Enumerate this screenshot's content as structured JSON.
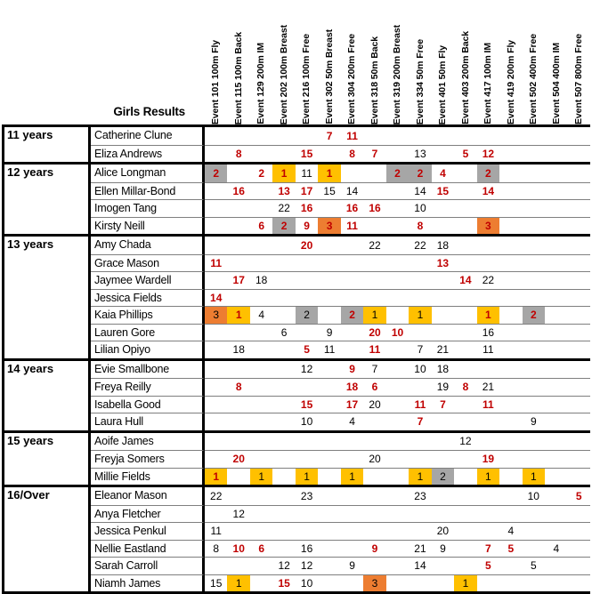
{
  "title": "Girls Results",
  "palette": {
    "red": "#C00000",
    "yellow": "#FFC000",
    "orange": "#ED7D31",
    "gray": "#A6A6A6"
  },
  "events": [
    "Event 101 100m Fly",
    "Event 115 100m Back",
    "Event 129 200m IM",
    "Event 202 100m Breast",
    "Event 216 100m Free",
    "Event 302 50m Breast",
    "Event 304 200m Free",
    "Event 318 50m Back",
    "Event 319 200m Breast",
    "Event 334 50m Free",
    "Event 401 50m Fly",
    "Event 403 200m Back",
    "Event 417 100m IM",
    "Event 419 200m Fly",
    "Event 502 400m Free",
    "Event 504 400m IM",
    "Event 507 800m Free"
  ],
  "groups": [
    {
      "label": "11 years",
      "swimmers": [
        {
          "name": "Catherine Clune",
          "results": [
            {
              "e": 5,
              "v": 7,
              "red": true
            },
            {
              "e": 6,
              "v": 11,
              "red": true
            }
          ]
        },
        {
          "name": "Eliza Andrews",
          "results": [
            {
              "e": 1,
              "v": 8,
              "red": true
            },
            {
              "e": 4,
              "v": 15,
              "red": true
            },
            {
              "e": 6,
              "v": 8,
              "red": true
            },
            {
              "e": 7,
              "v": 7,
              "red": true
            },
            {
              "e": 9,
              "v": 13
            },
            {
              "e": 11,
              "v": 5,
              "red": true
            },
            {
              "e": 12,
              "v": 12,
              "red": true
            }
          ]
        }
      ]
    },
    {
      "label": "12 years",
      "swimmers": [
        {
          "name": "Alice Longman",
          "results": [
            {
              "e": 0,
              "v": 2,
              "red": true,
              "bg": "gray"
            },
            {
              "e": 2,
              "v": 2,
              "red": true
            },
            {
              "e": 3,
              "v": 1,
              "red": true,
              "bg": "yellow"
            },
            {
              "e": 4,
              "v": 11
            },
            {
              "e": 5,
              "v": 1,
              "red": true,
              "bg": "yellow"
            },
            {
              "e": 8,
              "v": 2,
              "red": true,
              "bg": "gray"
            },
            {
              "e": 9,
              "v": 2,
              "red": true,
              "bg": "gray"
            },
            {
              "e": 10,
              "v": 4,
              "red": true
            },
            {
              "e": 12,
              "v": 2,
              "red": true,
              "bg": "gray"
            }
          ]
        },
        {
          "name": "Ellen Millar-Bond",
          "results": [
            {
              "e": 1,
              "v": 16,
              "red": true
            },
            {
              "e": 3,
              "v": 13,
              "red": true
            },
            {
              "e": 4,
              "v": 17,
              "red": true
            },
            {
              "e": 5,
              "v": 15
            },
            {
              "e": 6,
              "v": 14
            },
            {
              "e": 9,
              "v": 14
            },
            {
              "e": 10,
              "v": 15,
              "red": true
            },
            {
              "e": 12,
              "v": 14,
              "red": true
            }
          ]
        },
        {
          "name": "Imogen Tang",
          "results": [
            {
              "e": 3,
              "v": 22
            },
            {
              "e": 4,
              "v": 16,
              "red": true
            },
            {
              "e": 6,
              "v": 16,
              "red": true
            },
            {
              "e": 7,
              "v": 16,
              "red": true
            },
            {
              "e": 9,
              "v": 10
            }
          ]
        },
        {
          "name": "Kirsty Neill",
          "results": [
            {
              "e": 2,
              "v": 6,
              "red": true
            },
            {
              "e": 3,
              "v": 2,
              "red": true,
              "bg": "gray"
            },
            {
              "e": 4,
              "v": 9,
              "red": true
            },
            {
              "e": 5,
              "v": 3,
              "red": true,
              "bg": "orange"
            },
            {
              "e": 6,
              "v": 11,
              "red": true
            },
            {
              "e": 9,
              "v": 8,
              "red": true
            },
            {
              "e": 12,
              "v": 3,
              "red": true,
              "bg": "orange"
            }
          ]
        }
      ]
    },
    {
      "label": "13 years",
      "swimmers": [
        {
          "name": "Amy Chada",
          "results": [
            {
              "e": 4,
              "v": 20,
              "red": true
            },
            {
              "e": 7,
              "v": 22
            },
            {
              "e": 9,
              "v": 22
            },
            {
              "e": 10,
              "v": 18
            }
          ]
        },
        {
          "name": "Grace Mason",
          "results": [
            {
              "e": 0,
              "v": 11,
              "red": true
            },
            {
              "e": 10,
              "v": 13,
              "red": true
            }
          ]
        },
        {
          "name": "Jaymee Wardell",
          "results": [
            {
              "e": 1,
              "v": 17,
              "red": true
            },
            {
              "e": 2,
              "v": 18
            },
            {
              "e": 11,
              "v": 14,
              "red": true
            },
            {
              "e": 12,
              "v": 22
            }
          ]
        },
        {
          "name": "Jessica Fields",
          "results": [
            {
              "e": 0,
              "v": 14,
              "red": true
            }
          ]
        },
        {
          "name": "Kaia Phillips",
          "results": [
            {
              "e": 0,
              "v": 3,
              "bg": "orange"
            },
            {
              "e": 1,
              "v": 1,
              "red": true,
              "bg": "yellow"
            },
            {
              "e": 2,
              "v": 4
            },
            {
              "e": 4,
              "v": 2,
              "bg": "gray"
            },
            {
              "e": 6,
              "v": 2,
              "red": true,
              "bg": "gray"
            },
            {
              "e": 7,
              "v": 1,
              "bg": "yellow"
            },
            {
              "e": 9,
              "v": 1,
              "bg": "yellow"
            },
            {
              "e": 12,
              "v": 1,
              "red": true,
              "bg": "yellow"
            },
            {
              "e": 14,
              "v": 2,
              "red": true,
              "bg": "gray"
            }
          ]
        },
        {
          "name": "Lauren Gore",
          "results": [
            {
              "e": 3,
              "v": 6
            },
            {
              "e": 5,
              "v": 9
            },
            {
              "e": 7,
              "v": 20,
              "red": true
            },
            {
              "e": 8,
              "v": 10,
              "red": true
            },
            {
              "e": 12,
              "v": 16
            }
          ]
        },
        {
          "name": "Lilian Opiyo",
          "results": [
            {
              "e": 1,
              "v": 18
            },
            {
              "e": 4,
              "v": 5,
              "red": true
            },
            {
              "e": 5,
              "v": 11
            },
            {
              "e": 7,
              "v": 11,
              "red": true
            },
            {
              "e": 9,
              "v": 7
            },
            {
              "e": 10,
              "v": 21
            },
            {
              "e": 12,
              "v": 11
            }
          ]
        }
      ]
    },
    {
      "label": "14 years",
      "swimmers": [
        {
          "name": "Evie Smallbone",
          "results": [
            {
              "e": 4,
              "v": 12
            },
            {
              "e": 6,
              "v": 9,
              "red": true
            },
            {
              "e": 7,
              "v": 7
            },
            {
              "e": 9,
              "v": 10
            },
            {
              "e": 10,
              "v": 18
            }
          ]
        },
        {
          "name": "Freya Reilly",
          "results": [
            {
              "e": 1,
              "v": 8,
              "red": true
            },
            {
              "e": 6,
              "v": 18,
              "red": true
            },
            {
              "e": 7,
              "v": 6,
              "red": true
            },
            {
              "e": 10,
              "v": 19
            },
            {
              "e": 11,
              "v": 8,
              "red": true
            },
            {
              "e": 12,
              "v": 21
            }
          ]
        },
        {
          "name": "Isabella Good",
          "results": [
            {
              "e": 4,
              "v": 15,
              "red": true
            },
            {
              "e": 6,
              "v": 17,
              "red": true
            },
            {
              "e": 7,
              "v": 20
            },
            {
              "e": 9,
              "v": 11,
              "red": true
            },
            {
              "e": 10,
              "v": 7,
              "red": true
            },
            {
              "e": 12,
              "v": 11,
              "red": true
            }
          ]
        },
        {
          "name": "Laura Hull",
          "results": [
            {
              "e": 4,
              "v": 10
            },
            {
              "e": 6,
              "v": 4
            },
            {
              "e": 9,
              "v": 7,
              "red": true
            },
            {
              "e": 14,
              "v": 9
            }
          ]
        }
      ]
    },
    {
      "label": "15 years",
      "swimmers": [
        {
          "name": "Aoife James",
          "results": [
            {
              "e": 11,
              "v": 12
            }
          ]
        },
        {
          "name": "Freyja Somers",
          "results": [
            {
              "e": 1,
              "v": 20,
              "red": true
            },
            {
              "e": 7,
              "v": 20
            },
            {
              "e": 12,
              "v": 19,
              "red": true
            }
          ]
        },
        {
          "name": "Millie Fields",
          "results": [
            {
              "e": 0,
              "v": 1,
              "red": true,
              "bg": "yellow"
            },
            {
              "e": 2,
              "v": 1,
              "bg": "yellow"
            },
            {
              "e": 4,
              "v": 1,
              "bg": "yellow"
            },
            {
              "e": 6,
              "v": 1,
              "bg": "yellow"
            },
            {
              "e": 9,
              "v": 1,
              "bg": "yellow"
            },
            {
              "e": 10,
              "v": 2,
              "bg": "gray"
            },
            {
              "e": 12,
              "v": 1,
              "bg": "yellow"
            },
            {
              "e": 14,
              "v": 1,
              "bg": "yellow"
            }
          ]
        }
      ]
    },
    {
      "label": "16/Over",
      "swimmers": [
        {
          "name": "Eleanor Mason",
          "results": [
            {
              "e": 0,
              "v": 22
            },
            {
              "e": 4,
              "v": 23
            },
            {
              "e": 9,
              "v": 23
            },
            {
              "e": 14,
              "v": 10
            },
            {
              "e": 16,
              "v": 5,
              "red": true
            }
          ]
        },
        {
          "name": "Anya Fletcher",
          "results": [
            {
              "e": 1,
              "v": 12
            }
          ]
        },
        {
          "name": "Jessica Penkul",
          "results": [
            {
              "e": 0,
              "v": 11
            },
            {
              "e": 10,
              "v": 20
            },
            {
              "e": 13,
              "v": 4
            }
          ]
        },
        {
          "name": "Nellie Eastland",
          "results": [
            {
              "e": 0,
              "v": 8
            },
            {
              "e": 1,
              "v": 10,
              "red": true
            },
            {
              "e": 2,
              "v": 6,
              "red": true
            },
            {
              "e": 4,
              "v": 16
            },
            {
              "e": 7,
              "v": 9,
              "red": true
            },
            {
              "e": 9,
              "v": 21
            },
            {
              "e": 10,
              "v": 9
            },
            {
              "e": 12,
              "v": 7,
              "red": true
            },
            {
              "e": 13,
              "v": 5,
              "red": true
            },
            {
              "e": 15,
              "v": 4
            }
          ]
        },
        {
          "name": "Sarah Carroll",
          "results": [
            {
              "e": 3,
              "v": 12
            },
            {
              "e": 4,
              "v": 12
            },
            {
              "e": 6,
              "v": 9
            },
            {
              "e": 9,
              "v": 14
            },
            {
              "e": 12,
              "v": 5,
              "red": true
            },
            {
              "e": 14,
              "v": 5
            }
          ]
        },
        {
          "name": "Niamh James",
          "results": [
            {
              "e": 0,
              "v": 15
            },
            {
              "e": 1,
              "v": 1,
              "bg": "yellow"
            },
            {
              "e": 3,
              "v": 15,
              "red": true
            },
            {
              "e": 4,
              "v": 10
            },
            {
              "e": 7,
              "v": 3,
              "bg": "orange"
            },
            {
              "e": 11,
              "v": 1,
              "bg": "yellow"
            }
          ]
        }
      ]
    }
  ]
}
